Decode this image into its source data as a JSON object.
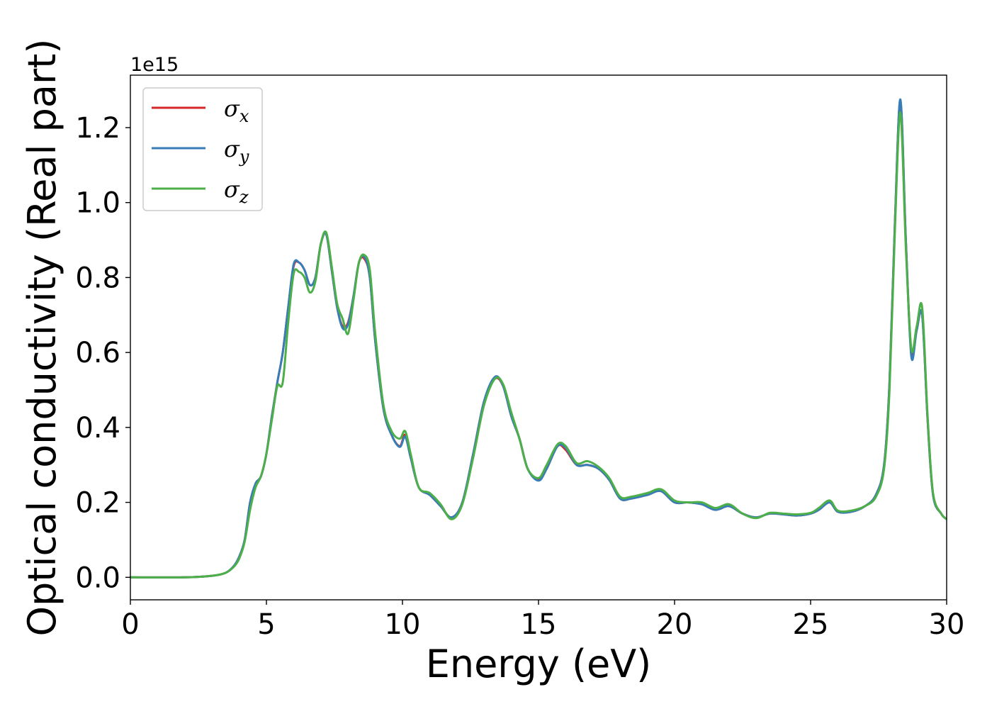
{
  "chart_data": {
    "type": "line",
    "title": "",
    "xlabel": "Energy (eV)",
    "ylabel": "Optical conductivity (Real part)",
    "xlim": [
      0,
      30
    ],
    "ylim": [
      -0.06,
      1.34
    ],
    "y_offset_label": "1e15",
    "grid": false,
    "legend_position": "top-left",
    "x_ticks": [
      0,
      5,
      10,
      15,
      20,
      25,
      30
    ],
    "x_tick_labels": [
      "0",
      "5",
      "10",
      "15",
      "20",
      "25",
      "30"
    ],
    "y_ticks": [
      0.0,
      0.2,
      0.4,
      0.6,
      0.8,
      1.0,
      1.2
    ],
    "y_tick_labels": [
      "0.0",
      "0.2",
      "0.4",
      "0.6",
      "0.8",
      "1.0",
      "1.2"
    ],
    "series": [
      {
        "name_base": "σ",
        "name_sub": "x",
        "color": "#d62728",
        "x": [
          0,
          2,
          3,
          3.5,
          3.8,
          4.0,
          4.2,
          4.4,
          4.6,
          4.8,
          5.0,
          5.2,
          5.4,
          5.6,
          5.8,
          6.0,
          6.2,
          6.4,
          6.6,
          6.8,
          7.0,
          7.2,
          7.4,
          7.6,
          7.8,
          8.0,
          8.2,
          8.4,
          8.6,
          8.8,
          9.0,
          9.3,
          9.6,
          9.9,
          10.1,
          10.3,
          10.6,
          11.0,
          11.4,
          11.8,
          12.2,
          12.6,
          13.0,
          13.4,
          13.7,
          14.0,
          14.3,
          14.6,
          15.0,
          15.3,
          15.7,
          16.0,
          16.4,
          16.8,
          17.2,
          17.6,
          18.0,
          18.4,
          19.0,
          19.5,
          20.0,
          20.5,
          21.0,
          21.5,
          22.0,
          22.5,
          23.0,
          23.5,
          24.0,
          24.5,
          25.0,
          25.3,
          25.7,
          26.0,
          26.5,
          27.0,
          27.4,
          27.7,
          27.9,
          28.1,
          28.3,
          28.5,
          28.7,
          28.9,
          29.1,
          29.3,
          29.5,
          29.8,
          30.0
        ],
        "values": [
          0.0,
          0.0,
          0.004,
          0.012,
          0.03,
          0.055,
          0.1,
          0.2,
          0.25,
          0.27,
          0.33,
          0.43,
          0.52,
          0.6,
          0.72,
          0.83,
          0.84,
          0.82,
          0.78,
          0.8,
          0.89,
          0.915,
          0.82,
          0.72,
          0.67,
          0.68,
          0.75,
          0.84,
          0.85,
          0.8,
          0.63,
          0.45,
          0.38,
          0.35,
          0.38,
          0.32,
          0.24,
          0.22,
          0.19,
          0.16,
          0.2,
          0.33,
          0.47,
          0.53,
          0.51,
          0.43,
          0.37,
          0.29,
          0.26,
          0.29,
          0.35,
          0.34,
          0.3,
          0.3,
          0.29,
          0.26,
          0.21,
          0.21,
          0.22,
          0.23,
          0.2,
          0.2,
          0.195,
          0.18,
          0.19,
          0.17,
          0.16,
          0.17,
          0.168,
          0.165,
          0.17,
          0.18,
          0.2,
          0.175,
          0.175,
          0.19,
          0.22,
          0.3,
          0.52,
          0.95,
          1.27,
          0.9,
          0.6,
          0.66,
          0.7,
          0.42,
          0.22,
          0.17,
          0.155
        ]
      },
      {
        "name_base": "σ",
        "name_sub": "y",
        "color": "#377eb8",
        "x": [
          0,
          2,
          3,
          3.5,
          3.8,
          4.0,
          4.2,
          4.4,
          4.6,
          4.8,
          5.0,
          5.2,
          5.4,
          5.6,
          5.8,
          6.0,
          6.2,
          6.4,
          6.6,
          6.8,
          7.0,
          7.2,
          7.4,
          7.6,
          7.8,
          8.0,
          8.2,
          8.4,
          8.6,
          8.8,
          9.0,
          9.3,
          9.6,
          9.9,
          10.1,
          10.3,
          10.6,
          11.0,
          11.4,
          11.8,
          12.2,
          12.6,
          13.0,
          13.4,
          13.7,
          14.0,
          14.3,
          14.6,
          15.0,
          15.3,
          15.7,
          16.0,
          16.4,
          16.8,
          17.2,
          17.6,
          18.0,
          18.4,
          19.0,
          19.5,
          20.0,
          20.5,
          21.0,
          21.5,
          22.0,
          22.5,
          23.0,
          23.5,
          24.0,
          24.5,
          25.0,
          25.3,
          25.7,
          26.0,
          26.5,
          27.0,
          27.4,
          27.7,
          27.9,
          28.1,
          28.3,
          28.5,
          28.7,
          28.9,
          29.1,
          29.3,
          29.5,
          29.8,
          30.0
        ],
        "values": [
          0.0,
          0.0,
          0.004,
          0.012,
          0.03,
          0.055,
          0.1,
          0.2,
          0.25,
          0.27,
          0.33,
          0.43,
          0.52,
          0.6,
          0.72,
          0.835,
          0.84,
          0.82,
          0.78,
          0.8,
          0.89,
          0.915,
          0.82,
          0.72,
          0.665,
          0.675,
          0.75,
          0.84,
          0.855,
          0.8,
          0.63,
          0.45,
          0.38,
          0.348,
          0.375,
          0.32,
          0.24,
          0.22,
          0.19,
          0.16,
          0.2,
          0.33,
          0.47,
          0.535,
          0.51,
          0.43,
          0.37,
          0.29,
          0.258,
          0.29,
          0.35,
          0.345,
          0.3,
          0.3,
          0.29,
          0.26,
          0.21,
          0.21,
          0.22,
          0.23,
          0.2,
          0.2,
          0.195,
          0.18,
          0.19,
          0.17,
          0.16,
          0.17,
          0.168,
          0.165,
          0.17,
          0.18,
          0.2,
          0.175,
          0.175,
          0.19,
          0.22,
          0.3,
          0.52,
          0.95,
          1.275,
          0.9,
          0.59,
          0.66,
          0.7,
          0.42,
          0.22,
          0.17,
          0.155
        ]
      },
      {
        "name_base": "σ",
        "name_sub": "z",
        "color": "#4daf4a",
        "x": [
          0,
          2,
          3,
          3.5,
          3.8,
          4.0,
          4.2,
          4.4,
          4.6,
          4.8,
          5.0,
          5.2,
          5.4,
          5.6,
          5.8,
          6.0,
          6.2,
          6.4,
          6.6,
          6.8,
          7.0,
          7.2,
          7.4,
          7.6,
          7.8,
          8.0,
          8.2,
          8.4,
          8.6,
          8.8,
          9.0,
          9.3,
          9.6,
          9.9,
          10.1,
          10.3,
          10.6,
          11.0,
          11.4,
          11.8,
          12.2,
          12.6,
          13.0,
          13.4,
          13.7,
          14.0,
          14.3,
          14.6,
          15.0,
          15.3,
          15.7,
          16.0,
          16.4,
          16.8,
          17.2,
          17.6,
          18.0,
          18.4,
          19.0,
          19.5,
          20.0,
          20.5,
          21.0,
          21.5,
          22.0,
          22.5,
          23.0,
          23.5,
          24.0,
          24.5,
          25.0,
          25.3,
          25.7,
          26.0,
          26.5,
          27.0,
          27.4,
          27.7,
          27.9,
          28.1,
          28.3,
          28.5,
          28.7,
          28.9,
          29.1,
          29.3,
          29.5,
          29.8,
          30.0
        ],
        "values": [
          0.0,
          0.0,
          0.004,
          0.012,
          0.028,
          0.05,
          0.095,
          0.18,
          0.24,
          0.27,
          0.33,
          0.42,
          0.51,
          0.52,
          0.68,
          0.81,
          0.815,
          0.8,
          0.76,
          0.79,
          0.89,
          0.92,
          0.83,
          0.73,
          0.69,
          0.65,
          0.74,
          0.84,
          0.86,
          0.82,
          0.65,
          0.46,
          0.39,
          0.37,
          0.39,
          0.33,
          0.24,
          0.225,
          0.195,
          0.155,
          0.195,
          0.32,
          0.46,
          0.53,
          0.515,
          0.44,
          0.37,
          0.29,
          0.265,
          0.3,
          0.355,
          0.35,
          0.305,
          0.31,
          0.295,
          0.265,
          0.215,
          0.215,
          0.225,
          0.235,
          0.205,
          0.2,
          0.2,
          0.185,
          0.195,
          0.17,
          0.158,
          0.172,
          0.17,
          0.168,
          0.172,
          0.185,
          0.205,
          0.178,
          0.178,
          0.19,
          0.215,
          0.29,
          0.5,
          0.93,
          1.24,
          0.88,
          0.61,
          0.67,
          0.72,
          0.43,
          0.225,
          0.17,
          0.155
        ]
      }
    ]
  }
}
